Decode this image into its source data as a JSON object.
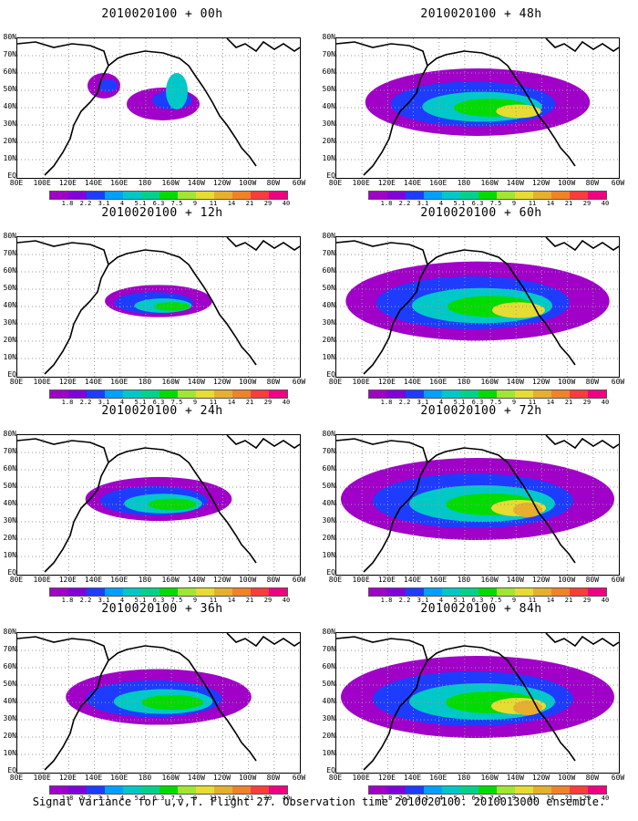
{
  "panels": [
    {
      "title": "2010020100 + 00h",
      "lead": 0
    },
    {
      "title": "2010020100 + 48h",
      "lead": 48
    },
    {
      "title": "2010020100 + 12h",
      "lead": 12
    },
    {
      "title": "2010020100 + 60h",
      "lead": 60
    },
    {
      "title": "2010020100 + 24h",
      "lead": 24
    },
    {
      "title": "2010020100 + 72h",
      "lead": 72
    },
    {
      "title": "2010020100 + 36h",
      "lead": 36
    },
    {
      "title": "2010020100 + 84h",
      "lead": 84
    }
  ],
  "lat_labels": [
    "80N",
    "70N",
    "60N",
    "50N",
    "40N",
    "30N",
    "20N",
    "10N",
    "EQ"
  ],
  "lon_labels": [
    "80E",
    "100E",
    "120E",
    "140E",
    "160E",
    "180",
    "160W",
    "140W",
    "120W",
    "100W",
    "80W",
    "60W"
  ],
  "colorbar": {
    "labels": [
      "1.8",
      "2.2",
      "3.1",
      "4",
      "5.1",
      "6.3",
      "7.5",
      "9",
      "11",
      "14",
      "21",
      "29",
      "40"
    ],
    "colors": [
      "#a000c8",
      "#8200dc",
      "#1e3cff",
      "#00a0ff",
      "#00c8c8",
      "#00d28c",
      "#00dc00",
      "#a0e632",
      "#e6dc32",
      "#e6af2d",
      "#f08228",
      "#fa3c3c",
      "#f00082"
    ]
  },
  "footer": "Signal Variance for u,v,T. Flight 27. Observation time 2010020100. 2010013000 ensemble."
}
